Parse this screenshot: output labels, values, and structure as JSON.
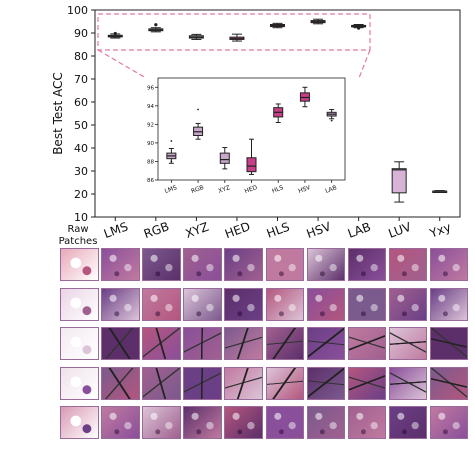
{
  "figure": {
    "raw_label_line1": "Raw",
    "raw_label_line2": "Patches",
    "row_count": 5
  },
  "chart_data": [
    {
      "type": "box",
      "ylabel": "Best Test ACC",
      "ylim": [
        10,
        100
      ],
      "yticks": [
        10,
        20,
        30,
        40,
        50,
        60,
        70,
        80,
        90,
        100
      ],
      "categories": [
        "LMS",
        "RGB",
        "XYZ",
        "HED",
        "HLS",
        "HSV",
        "LAB",
        "LUV",
        "Yxy"
      ],
      "boxes": [
        {
          "min": 87.8,
          "q1": 88.3,
          "median": 88.6,
          "q3": 89.0,
          "max": 89.6,
          "color": "#c9a7c9"
        },
        {
          "min": 90.5,
          "q1": 91.0,
          "median": 91.3,
          "q3": 91.8,
          "max": 92.3,
          "color": "#c9a7c9"
        },
        {
          "min": 87.2,
          "q1": 87.8,
          "median": 88.2,
          "q3": 88.8,
          "max": 89.4,
          "color": "#c9a7c9"
        },
        {
          "min": 86.5,
          "q1": 87.2,
          "median": 87.5,
          "q3": 88.2,
          "max": 89.5,
          "color": "#c73f86"
        },
        {
          "min": 92.3,
          "q1": 92.8,
          "median": 93.2,
          "q3": 93.7,
          "max": 94.2,
          "color": "#c73f86"
        },
        {
          "min": 94.0,
          "q1": 94.5,
          "median": 94.9,
          "q3": 95.4,
          "max": 96.0,
          "color": "#c73f86"
        },
        {
          "min": 92.3,
          "q1": 92.7,
          "median": 93.0,
          "q3": 93.3,
          "max": 93.7,
          "color": "#c9a7c9"
        },
        {
          "min": 16.5,
          "q1": 20.5,
          "median": 30.5,
          "q3": 31.0,
          "max": 34.0,
          "color": "#d8b3d8"
        },
        {
          "min": 21.0,
          "q1": 21.1,
          "median": 21.2,
          "q3": 21.3,
          "max": 21.5,
          "color": "#c9a7c9"
        }
      ],
      "fliers": [
        [
          0,
          89.8
        ],
        [
          1,
          93.6
        ],
        [
          6,
          92.1
        ]
      ]
    },
    {
      "type": "box",
      "role": "inset-zoom",
      "ylim": [
        86,
        97
      ],
      "yticks": [
        86,
        88,
        90,
        92,
        94,
        96
      ],
      "categories": [
        "LMS",
        "RGB",
        "XYZ",
        "HED",
        "HLS",
        "HSV",
        "LAB"
      ],
      "boxes": [
        {
          "min": 87.8,
          "q1": 88.3,
          "median": 88.6,
          "q3": 88.9,
          "max": 89.4,
          "color": "#c9a7c9"
        },
        {
          "min": 90.4,
          "q1": 90.8,
          "median": 91.2,
          "q3": 91.7,
          "max": 92.1,
          "color": "#c9a7c9"
        },
        {
          "min": 87.2,
          "q1": 87.8,
          "median": 88.2,
          "q3": 88.9,
          "max": 89.5,
          "color": "#c9a7c9"
        },
        {
          "min": 86.6,
          "q1": 86.9,
          "median": 87.5,
          "q3": 88.4,
          "max": 90.4,
          "color": "#c73f86"
        },
        {
          "min": 92.2,
          "q1": 92.8,
          "median": 93.3,
          "q3": 93.8,
          "max": 94.2,
          "color": "#c73f86"
        },
        {
          "min": 93.9,
          "q1": 94.5,
          "median": 94.9,
          "q3": 95.4,
          "max": 96.0,
          "color": "#c73f86"
        },
        {
          "min": 92.6,
          "q1": 92.9,
          "median": 93.1,
          "q3": 93.3,
          "max": 93.6,
          "color": "#c9a7c9"
        }
      ],
      "fliers": [
        [
          0,
          90.2
        ],
        [
          0,
          88.0
        ],
        [
          1,
          93.6
        ],
        [
          6,
          92.4
        ]
      ]
    }
  ],
  "styles": {
    "dashed_frame": "#e07aa8",
    "patch_palette": [
      "#b4567e",
      "#8a4f9a",
      "#7b5a8e",
      "#a0608f",
      "#6a3f86",
      "#c07aa0",
      "#dcc4d8",
      "#5c2f6a"
    ]
  }
}
